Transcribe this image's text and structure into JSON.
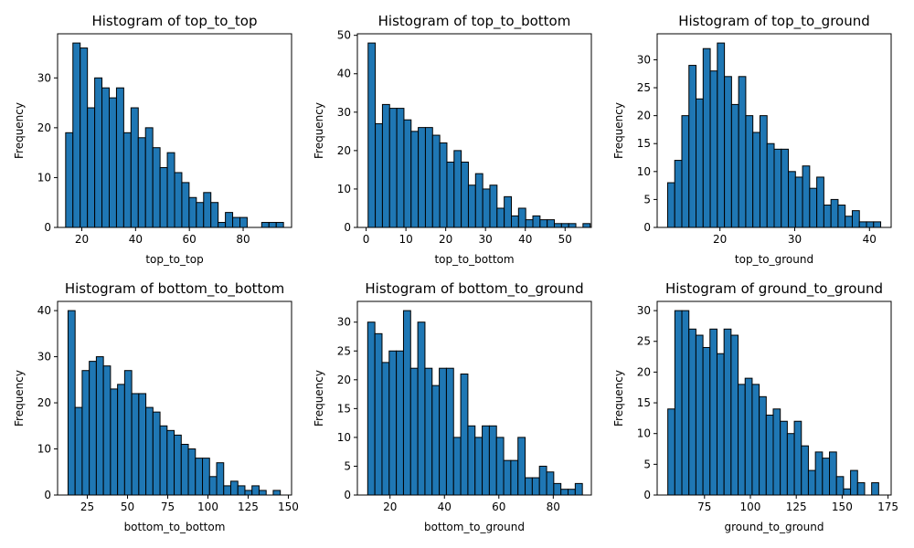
{
  "colors": {
    "bar_fill": "#1f77b4",
    "bar_edge": "#000000",
    "axes": "#000000",
    "background": "#ffffff"
  },
  "chart_data": [
    {
      "type": "bar",
      "title": "Histogram of top_to_top",
      "xlabel": "top_to_top",
      "ylabel": "Frequency",
      "bin_start": 14.0,
      "bin_width": 2.7,
      "counts": [
        19,
        37,
        36,
        24,
        30,
        28,
        26,
        28,
        19,
        24,
        18,
        20,
        16,
        12,
        15,
        11,
        9,
        6,
        5,
        7,
        5,
        1,
        3,
        2,
        2,
        0,
        0,
        1,
        1,
        1
      ],
      "xlim": [
        11.0,
        98.0
      ],
      "ylim": [
        0,
        38.85
      ],
      "xticks": [
        20,
        40,
        60,
        80
      ],
      "yticks": [
        0,
        10,
        20,
        30
      ],
      "grid": false
    },
    {
      "type": "bar",
      "title": "Histogram of top_to_bottom",
      "xlabel": "top_to_bottom",
      "ylabel": "Frequency",
      "bin_start": 0.5,
      "bin_width": 1.8,
      "counts": [
        48,
        27,
        32,
        31,
        31,
        28,
        25,
        26,
        26,
        24,
        22,
        17,
        20,
        17,
        11,
        14,
        10,
        11,
        5,
        8,
        3,
        5,
        2,
        3,
        2,
        2,
        1,
        1,
        1,
        0,
        1
      ],
      "xlim": [
        -2.2,
        56.6
      ],
      "ylim": [
        0,
        50.4
      ],
      "xticks": [
        0,
        10,
        20,
        30,
        40,
        50
      ],
      "yticks": [
        0,
        10,
        20,
        30,
        40,
        50
      ],
      "grid": false
    },
    {
      "type": "bar",
      "title": "Histogram of top_to_ground",
      "xlabel": "top_to_ground",
      "ylabel": "Frequency",
      "bin_start": 13.0,
      "bin_width": 0.95,
      "counts": [
        8,
        12,
        20,
        29,
        23,
        32,
        28,
        33,
        27,
        22,
        27,
        20,
        17,
        20,
        15,
        14,
        14,
        10,
        9,
        11,
        7,
        9,
        4,
        5,
        4,
        2,
        3,
        1,
        1,
        1
      ],
      "xlim": [
        11.6,
        42.9
      ],
      "ylim": [
        0,
        34.65
      ],
      "xticks": [
        20,
        30,
        40
      ],
      "yticks": [
        0,
        5,
        10,
        15,
        20,
        25,
        30
      ],
      "grid": false
    },
    {
      "type": "bar",
      "title": "Histogram of bottom_to_bottom",
      "xlabel": "bottom_to_bottom",
      "ylabel": "Frequency",
      "bin_start": 13.0,
      "bin_width": 4.4,
      "counts": [
        40,
        19,
        27,
        29,
        30,
        28,
        23,
        24,
        27,
        22,
        22,
        19,
        18,
        15,
        14,
        13,
        11,
        10,
        8,
        8,
        4,
        7,
        2,
        3,
        2,
        1,
        2,
        1,
        0,
        1
      ],
      "xlim": [
        6.5,
        152.0
      ],
      "ylim": [
        0,
        42.0
      ],
      "xticks": [
        25,
        50,
        75,
        100,
        125,
        150
      ],
      "yticks": [
        0,
        10,
        20,
        30,
        40
      ],
      "grid": false
    },
    {
      "type": "bar",
      "title": "Histogram of bottom_to_ground",
      "xlabel": "bottom_to_ground",
      "ylabel": "Frequency",
      "bin_start": 11.8,
      "bin_width": 2.63,
      "counts": [
        30,
        28,
        23,
        25,
        25,
        32,
        22,
        30,
        22,
        19,
        22,
        22,
        10,
        21,
        12,
        10,
        12,
        12,
        10,
        6,
        6,
        10,
        3,
        3,
        5,
        4,
        2,
        1,
        1,
        2
      ],
      "xlim": [
        8.0,
        94.0
      ],
      "ylim": [
        0,
        33.6
      ],
      "xticks": [
        20,
        40,
        60,
        80
      ],
      "yticks": [
        0,
        5,
        10,
        15,
        20,
        25,
        30
      ],
      "grid": false
    },
    {
      "type": "bar",
      "title": "Histogram of ground_to_ground",
      "xlabel": "ground_to_ground",
      "ylabel": "Frequency",
      "bin_start": 55.0,
      "bin_width": 3.83,
      "counts": [
        14,
        30,
        30,
        27,
        26,
        24,
        27,
        23,
        27,
        26,
        18,
        19,
        18,
        16,
        13,
        14,
        12,
        10,
        12,
        8,
        4,
        7,
        6,
        7,
        3,
        1,
        4,
        2,
        0,
        2
      ],
      "xlim": [
        49.2,
        176.7
      ],
      "ylim": [
        0,
        31.5
      ],
      "xticks": [
        75,
        100,
        125,
        150,
        175
      ],
      "yticks": [
        0,
        5,
        10,
        15,
        20,
        25,
        30
      ],
      "grid": false
    }
  ]
}
